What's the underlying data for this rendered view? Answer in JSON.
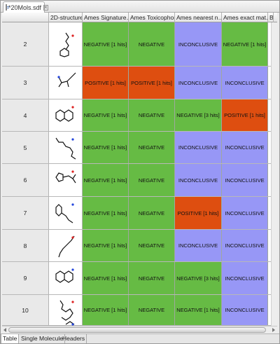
{
  "editor_tab": {
    "title": "*20Mols.sdf",
    "close_icon": "close-icon"
  },
  "columns": [
    "",
    "2D-structure",
    "Ames Signature…",
    "Ames Toxicophore",
    "Ames nearest n…",
    "Ames exact mat…",
    "B"
  ],
  "colors": {
    "negative": "#66bb44",
    "positive": "#de4e10",
    "inconclusive": "#9797f6"
  },
  "rows": [
    {
      "id": "2",
      "cells": [
        "NEGATIVE [1 hits]",
        "NEGATIVE",
        "INCONCLUSIVE",
        "NEGATIVE [1 hits]"
      ],
      "states": [
        "neg",
        "neg",
        "inc",
        "neg"
      ]
    },
    {
      "id": "3",
      "cells": [
        "POSITIVE [1 hits]",
        "POSITIVE [1 hits]",
        "INCONCLUSIVE",
        "INCONCLUSIVE"
      ],
      "states": [
        "pos",
        "pos",
        "inc",
        "inc"
      ]
    },
    {
      "id": "4",
      "cells": [
        "NEGATIVE [1 hits]",
        "NEGATIVE",
        "NEGATIVE [3 hits]",
        "POSITIVE [1 hits]"
      ],
      "states": [
        "neg",
        "neg",
        "neg",
        "pos"
      ]
    },
    {
      "id": "5",
      "cells": [
        "NEGATIVE [1 hits]",
        "NEGATIVE",
        "INCONCLUSIVE",
        "INCONCLUSIVE"
      ],
      "states": [
        "neg",
        "neg",
        "inc",
        "inc"
      ]
    },
    {
      "id": "6",
      "cells": [
        "NEGATIVE [1 hits]",
        "NEGATIVE",
        "INCONCLUSIVE",
        "INCONCLUSIVE"
      ],
      "states": [
        "neg",
        "neg",
        "inc",
        "inc"
      ]
    },
    {
      "id": "7",
      "cells": [
        "NEGATIVE [1 hits]",
        "NEGATIVE",
        "POSITIVE [1 hits]",
        "INCONCLUSIVE"
      ],
      "states": [
        "neg",
        "neg",
        "pos",
        "inc"
      ]
    },
    {
      "id": "8",
      "cells": [
        "NEGATIVE [1 hits]",
        "NEGATIVE",
        "INCONCLUSIVE",
        "INCONCLUSIVE"
      ],
      "states": [
        "neg",
        "neg",
        "inc",
        "inc"
      ]
    },
    {
      "id": "9",
      "cells": [
        "NEGATIVE [1 hits]",
        "NEGATIVE",
        "NEGATIVE [3 hits]",
        "INCONCLUSIVE"
      ],
      "states": [
        "neg",
        "neg",
        "neg",
        "inc"
      ]
    },
    {
      "id": "10",
      "cells": [
        "NEGATIVE [1 hits]",
        "NEGATIVE",
        "NEGATIVE [1 hits]",
        "INCONCLUSIVE"
      ],
      "states": [
        "neg",
        "neg",
        "neg",
        "inc"
      ]
    },
    {
      "id": "",
      "cells": [
        "",
        "",
        "",
        ""
      ],
      "states": [
        "pos",
        "pos",
        "pos",
        "pos"
      ]
    }
  ],
  "bottom_tabs": [
    "Table",
    "Single Molecule",
    "Headers"
  ]
}
